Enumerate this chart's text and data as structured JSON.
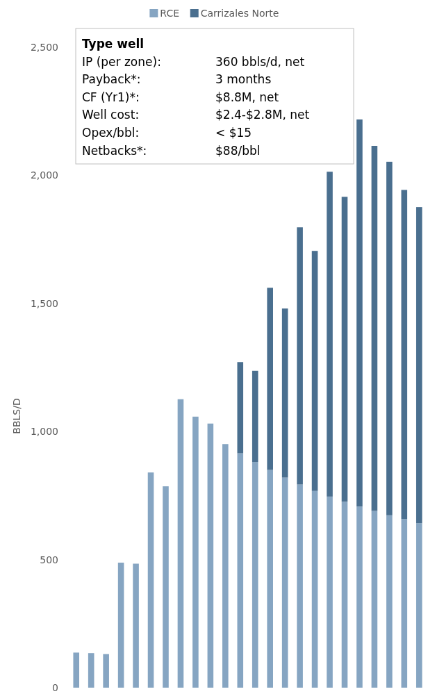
{
  "chart_data": {
    "type": "bar",
    "stacked": true,
    "legend": "top",
    "ylabel": "BBLS/D",
    "categories": [
      null,
      null,
      null,
      null,
      null,
      null,
      null,
      null,
      null,
      null,
      null,
      null,
      null,
      null,
      null,
      null,
      null,
      null,
      null,
      null,
      null,
      null,
      null,
      null
    ],
    "series": [
      {
        "name": "RCE",
        "color": "#86a5c2",
        "values": [
          137,
          135,
          131,
          488,
          484,
          840,
          786,
          1126,
          1058,
          1031,
          951,
          915,
          881,
          850,
          820,
          793,
          768,
          746,
          726,
          707,
          690,
          673,
          658,
          642
        ]
      },
      {
        "name": "Carrizales Norte",
        "color": "#4a6f8f",
        "values": [
          null,
          null,
          null,
          null,
          null,
          null,
          null,
          null,
          null,
          null,
          null,
          356,
          356,
          711,
          660,
          1004,
          937,
          1268,
          1190,
          1511,
          1425,
          1380,
          1285,
          1234
        ]
      }
    ],
    "ylim": [
      0,
      2500
    ],
    "yticks": [
      0,
      500,
      {
        "value": 1000,
        "label": "1,000"
      },
      {
        "value": 1500,
        "label": "1,500"
      },
      {
        "value": 2000,
        "label": "2,000"
      },
      {
        "value": 2500,
        "label": "2,500"
      }
    ],
    "annotations": [
      "Type well",
      "IP (per zone):",
      "360 bbls/d, net",
      "Payback*:",
      "3 months",
      "CF (Yr1)*:",
      "$8.8M, net",
      "Well cost:",
      "$2.4-$2.8M, net",
      "Opex/bbl:",
      "< $15",
      "Netbacks*:",
      "$88/bbl"
    ]
  }
}
